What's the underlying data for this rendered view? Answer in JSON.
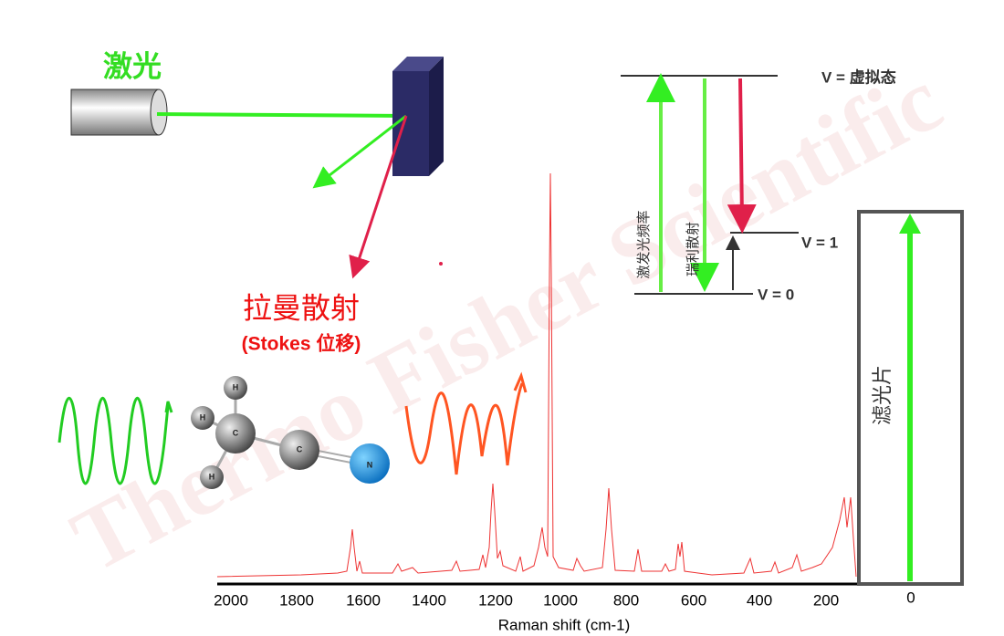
{
  "laser_label": "激光",
  "raman_label": "拉曼散射",
  "stokes_label": "(Stokes 位移)",
  "energy_levels": {
    "virtual": "V = 虚拟态",
    "v1": "V = 1",
    "v0": "V = 0",
    "excitation": "激发光频率",
    "rayleigh": "瑞利散射"
  },
  "molecule_atoms": [
    "H",
    "H",
    "H",
    "C",
    "C",
    "N"
  ],
  "filter_label": "滤光片",
  "spectrum": {
    "xticks": [
      "2000",
      "1800",
      "1600",
      "1400",
      "1200",
      "1000",
      "800",
      "600",
      "400",
      "200",
      "0"
    ],
    "xlabel": "Raman shift (cm-1)"
  },
  "watermark": "Thermo Fisher Scientific"
}
